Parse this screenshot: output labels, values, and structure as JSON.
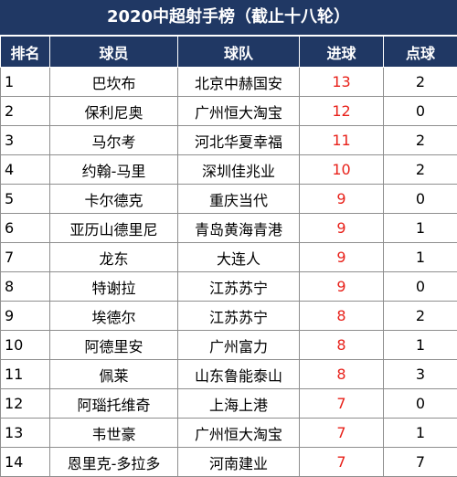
{
  "title": "2020中超射手榜（截止十八轮）",
  "colors": {
    "header_bg": "#203864",
    "header_text": "#ffffff",
    "goals_text": "#e8211a"
  },
  "columns": [
    "排名",
    "球员",
    "球队",
    "进球",
    "点球"
  ],
  "rows": [
    [
      "1",
      "巴坎布",
      "北京中赫国安",
      "13",
      "2"
    ],
    [
      "2",
      "保利尼奥",
      "广州恒大淘宝",
      "12",
      "0"
    ],
    [
      "3",
      "马尔考",
      "河北华夏幸福",
      "11",
      "2"
    ],
    [
      "4",
      "约翰-马里",
      "深圳佳兆业",
      "10",
      "2"
    ],
    [
      "5",
      "卡尔德克",
      "重庆当代",
      "9",
      "0"
    ],
    [
      "6",
      "亚历山德里尼",
      "青岛黄海青港",
      "9",
      "1"
    ],
    [
      "7",
      "龙东",
      "大连人",
      "9",
      "1"
    ],
    [
      "8",
      "特谢拉",
      "江苏苏宁",
      "9",
      "0"
    ],
    [
      "9",
      "埃德尔",
      "江苏苏宁",
      "8",
      "2"
    ],
    [
      "10",
      "阿德里安",
      "广州富力",
      "8",
      "1"
    ],
    [
      "11",
      "佩莱",
      "山东鲁能泰山",
      "8",
      "3"
    ],
    [
      "12",
      "阿瑙托维奇",
      "上海上港",
      "7",
      "0"
    ],
    [
      "13",
      "韦世豪",
      "广州恒大淘宝",
      "7",
      "1"
    ],
    [
      "14",
      "恩里克-多拉多",
      "河南建业",
      "7",
      "7"
    ]
  ]
}
